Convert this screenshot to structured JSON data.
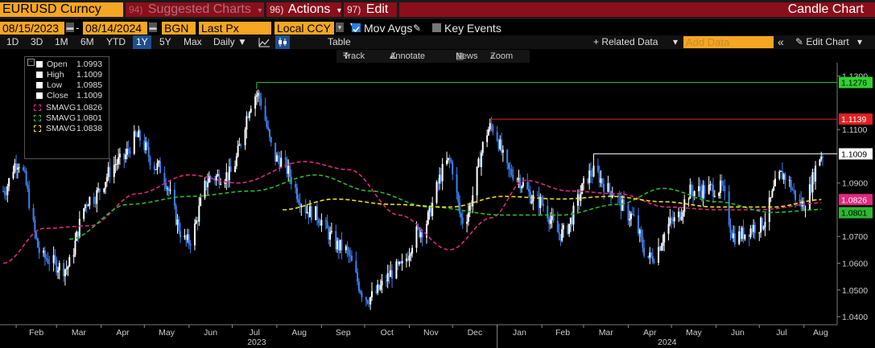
{
  "header": {
    "ticker": "EURUSD Curncy",
    "suggested": {
      "num": "94)",
      "label": "Suggested Charts"
    },
    "actions": {
      "num": "96)",
      "label": "Actions"
    },
    "edit": {
      "num": "97)",
      "label": "Edit"
    },
    "chart_title": "Candle Chart"
  },
  "controls": {
    "start_date": "08/15/2023",
    "end_date": "08/14/2024",
    "source": "BGN",
    "price_field": "Last Px",
    "currency": "Local CCY",
    "mov_avgs_label": "Mov Avgs",
    "mov_avgs_checked": true,
    "key_events_label": "Key Events",
    "key_events_checked": false
  },
  "toolbar": {
    "periods": [
      "1D",
      "3D",
      "1M",
      "6M",
      "YTD",
      "1Y",
      "5Y",
      "Max"
    ],
    "active_period": "1Y",
    "frequency": "Daily",
    "table_label": "Table",
    "related_data": "+ Related Data",
    "add_data_placeholder": "Add Data",
    "edit_chart": "Edit Chart",
    "collapse": "«"
  },
  "chart_tools": {
    "track": "Track",
    "annotate": "Annotate",
    "news": "News",
    "zoom": "Zoom"
  },
  "legend": {
    "ohlc": [
      {
        "name": "Open",
        "value": "1.0993"
      },
      {
        "name": "High",
        "value": "1.1009"
      },
      {
        "name": "Low",
        "value": "1.0985"
      },
      {
        "name": "Close",
        "value": "1.1009"
      }
    ],
    "smas": [
      {
        "name": "SMAVG",
        "value": "1.0826",
        "color": "#e0287f"
      },
      {
        "name": "SMAVG",
        "value": "1.0801",
        "color": "#2db82d"
      },
      {
        "name": "SMAVG",
        "value": "1.0838",
        "color": "#f0e020"
      }
    ]
  },
  "colors": {
    "up": "#ffffff",
    "down": "#3b82f6",
    "high_line": "#2fd12f",
    "mid_line": "#e02020",
    "last_line": "#ffffff",
    "ma_pink": "#e0287f",
    "ma_green": "#2db82d",
    "ma_yellow": "#f0e020",
    "accent": "#f5a623",
    "menu_red": "#8a0f1b"
  },
  "chart_data": {
    "type": "candlestick",
    "x_range": [
      "2023-01-23",
      "2024-08-14"
    ],
    "ylim": [
      1.037,
      1.135
    ],
    "y_ticks": [
      "1.1300",
      "1.1100",
      "1.0900",
      "1.0700",
      "1.0600",
      "1.0500",
      "1.0400"
    ],
    "x_months": [
      "Feb",
      "Mar",
      "Apr",
      "May",
      "Jun",
      "Jul",
      "Aug",
      "Sep",
      "Oct",
      "Nov",
      "Dec",
      "Jan",
      "Feb",
      "Mar",
      "Apr",
      "May",
      "Jun",
      "Jul",
      "Aug"
    ],
    "x_years": [
      "2023",
      "2024"
    ],
    "close_anchors": [
      [
        "2023-01-23",
        1.087
      ],
      [
        "2023-02-02",
        1.098
      ],
      [
        "2023-02-20",
        1.062
      ],
      [
        "2023-03-07",
        1.058
      ],
      [
        "2023-03-24",
        1.084
      ],
      [
        "2023-04-14",
        1.098
      ],
      [
        "2023-04-26",
        1.107
      ],
      [
        "2023-05-10",
        1.096
      ],
      [
        "2023-05-31",
        1.068
      ],
      [
        "2023-06-16",
        1.092
      ],
      [
        "2023-06-28",
        1.093
      ],
      [
        "2023-07-18",
        1.123
      ],
      [
        "2023-08-01",
        1.099
      ],
      [
        "2023-08-25",
        1.079
      ],
      [
        "2023-09-15",
        1.066
      ],
      [
        "2023-10-03",
        1.047
      ],
      [
        "2023-10-25",
        1.058
      ],
      [
        "2023-11-08",
        1.072
      ],
      [
        "2023-11-29",
        1.098
      ],
      [
        "2023-12-08",
        1.076
      ],
      [
        "2023-12-28",
        1.111
      ],
      [
        "2024-01-10",
        1.094
      ],
      [
        "2024-01-30",
        1.083
      ],
      [
        "2024-02-14",
        1.071
      ],
      [
        "2024-03-08",
        1.094
      ],
      [
        "2024-03-20",
        1.087
      ],
      [
        "2024-04-02",
        1.078
      ],
      [
        "2024-04-16",
        1.062
      ],
      [
        "2024-05-03",
        1.076
      ],
      [
        "2024-05-15",
        1.087
      ],
      [
        "2024-06-04",
        1.088
      ],
      [
        "2024-06-14",
        1.07
      ],
      [
        "2024-07-01",
        1.074
      ],
      [
        "2024-07-17",
        1.093
      ],
      [
        "2024-07-31",
        1.082
      ],
      [
        "2024-08-14",
        1.1009
      ]
    ],
    "series": [
      {
        "name": "SMAVG",
        "last": 1.0826,
        "anchors": [
          [
            "2023-01-23",
            1.06
          ],
          [
            "2023-02-20",
            1.073
          ],
          [
            "2023-03-24",
            1.074
          ],
          [
            "2023-04-26",
            1.086
          ],
          [
            "2023-06-01",
            1.093
          ],
          [
            "2023-07-05",
            1.09
          ],
          [
            "2023-08-20",
            1.098
          ],
          [
            "2023-09-20",
            1.095
          ],
          [
            "2023-10-25",
            1.078
          ],
          [
            "2023-11-29",
            1.065
          ],
          [
            "2023-12-28",
            1.077
          ],
          [
            "2024-01-20",
            1.091
          ],
          [
            "2024-02-20",
            1.087
          ],
          [
            "2024-03-25",
            1.086
          ],
          [
            "2024-04-28",
            1.081
          ],
          [
            "2024-06-01",
            1.08
          ],
          [
            "2024-07-01",
            1.08
          ],
          [
            "2024-08-14",
            1.0826
          ]
        ]
      },
      {
        "name": "SMAVG",
        "last": 1.0801,
        "anchors": [
          [
            "2023-03-10",
            1.069
          ],
          [
            "2023-04-20",
            1.082
          ],
          [
            "2023-06-01",
            1.085
          ],
          [
            "2023-07-15",
            1.087
          ],
          [
            "2023-08-28",
            1.093
          ],
          [
            "2023-10-05",
            1.087
          ],
          [
            "2023-11-15",
            1.081
          ],
          [
            "2024-01-05",
            1.078
          ],
          [
            "2024-02-14",
            1.078
          ],
          [
            "2024-03-25",
            1.082
          ],
          [
            "2024-04-25",
            1.088
          ],
          [
            "2024-06-01",
            1.083
          ],
          [
            "2024-07-10",
            1.079
          ],
          [
            "2024-08-14",
            1.0801
          ]
        ]
      },
      {
        "name": "SMAVG",
        "last": 1.0838,
        "anchors": [
          [
            "2023-08-05",
            1.08
          ],
          [
            "2023-09-10",
            1.084
          ],
          [
            "2023-10-20",
            1.082
          ],
          [
            "2023-11-29",
            1.081
          ],
          [
            "2024-01-05",
            1.085
          ],
          [
            "2024-02-14",
            1.084
          ],
          [
            "2024-03-20",
            1.085
          ],
          [
            "2024-04-25",
            1.083
          ],
          [
            "2024-06-01",
            1.081
          ],
          [
            "2024-07-10",
            1.081
          ],
          [
            "2024-08-14",
            1.0838
          ]
        ]
      }
    ],
    "levels": [
      {
        "label": "1.1276",
        "value": 1.1276,
        "from": "2023-07-18",
        "color": "#2fd12f"
      },
      {
        "label": "1.1139",
        "value": 1.1139,
        "from": "2023-12-28",
        "color": "#e02020"
      },
      {
        "label": "1.1009",
        "value": 1.1009,
        "from": "2024-03-08",
        "color": "#ffffff"
      }
    ],
    "last_labels": [
      {
        "label": "1.0826",
        "value": 1.0826,
        "color": "#e0287f"
      },
      {
        "label": "1.0801",
        "value": 1.0801,
        "color": "#2db82d"
      }
    ]
  }
}
